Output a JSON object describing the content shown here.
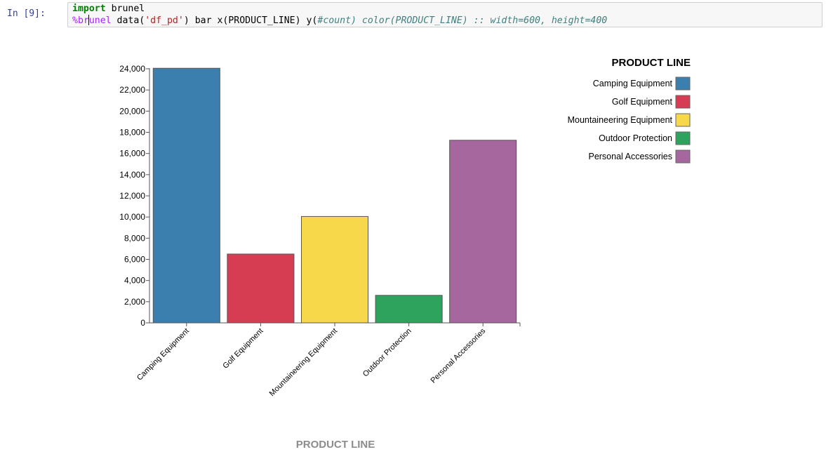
{
  "cell": {
    "prompt": "In [9]:",
    "line1": {
      "kw": "import",
      "rest": " brunel"
    },
    "line2": {
      "magic_a": "%br",
      "magic_b": "unel",
      "plain1": " data(",
      "str": "'df_pd'",
      "plain2": ") bar x(PRODUCT_LINE) y(",
      "comment": "#count) color(PRODUCT_LINE) :: width=600, height=400"
    }
  },
  "colors": {
    "Camping Equipment": "#3a7fae",
    "Golf Equipment": "#d63c52",
    "Mountaineering Equipment": "#f7d84a",
    "Outdoor Protection": "#2ea35d",
    "Personal Accessories": "#a5679d"
  },
  "chart_data": {
    "type": "bar",
    "categories": [
      "Camping Equipment",
      "Golf Equipment",
      "Mountaineering Equipment",
      "Outdoor Protection",
      "Personal Accessories"
    ],
    "values": [
      24050,
      6500,
      10050,
      2600,
      17250
    ],
    "xlabel": "PRODUCT LINE",
    "ylabel": "",
    "ylim": [
      0,
      24000
    ],
    "yticks": [
      0,
      2000,
      4000,
      6000,
      8000,
      10000,
      12000,
      14000,
      16000,
      18000,
      20000,
      22000,
      24000
    ],
    "ytick_labels": [
      "0",
      "2,000",
      "4,000",
      "6,000",
      "8,000",
      "10,000",
      "12,000",
      "14,000",
      "16,000",
      "18,000",
      "20,000",
      "22,000",
      "24,000"
    ],
    "legend": {
      "title": "PRODUCT LINE",
      "entries": [
        "Camping Equipment",
        "Golf Equipment",
        "Mountaineering Equipment",
        "Outdoor Protection",
        "Personal Accessories"
      ],
      "placement": "top-right"
    },
    "grid": false
  }
}
